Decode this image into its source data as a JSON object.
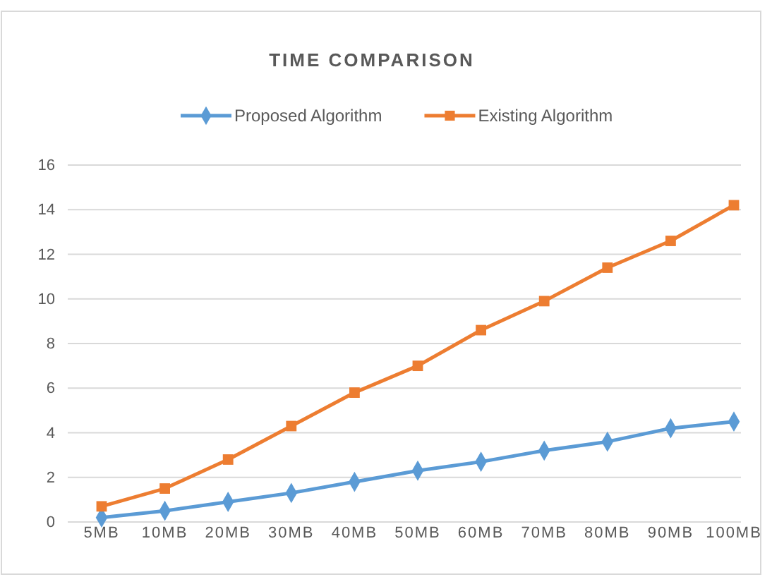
{
  "chart_data": {
    "type": "line",
    "title": "TIME COMPARISON",
    "categories": [
      "5MB",
      "10MB",
      "20MB",
      "30MB",
      "40MB",
      "50MB",
      "60MB",
      "70MB",
      "80MB",
      "90MB",
      "100MB"
    ],
    "series": [
      {
        "name": "Proposed Algorithm",
        "color": "#5b9bd5",
        "marker": "diamond",
        "values": [
          0.2,
          0.5,
          0.9,
          1.3,
          1.8,
          2.3,
          2.7,
          3.2,
          3.6,
          4.2,
          4.5
        ]
      },
      {
        "name": "Existing Algorithm",
        "color": "#ed7d31",
        "marker": "square",
        "values": [
          0.7,
          1.5,
          2.8,
          4.3,
          5.8,
          7.0,
          8.6,
          9.9,
          11.4,
          12.6,
          14.2
        ]
      }
    ],
    "ylim": [
      0,
      16
    ],
    "yticks": [
      0,
      2,
      4,
      6,
      8,
      10,
      12,
      14,
      16
    ],
    "grid": "y",
    "legend": "top",
    "line_style": "solid"
  }
}
